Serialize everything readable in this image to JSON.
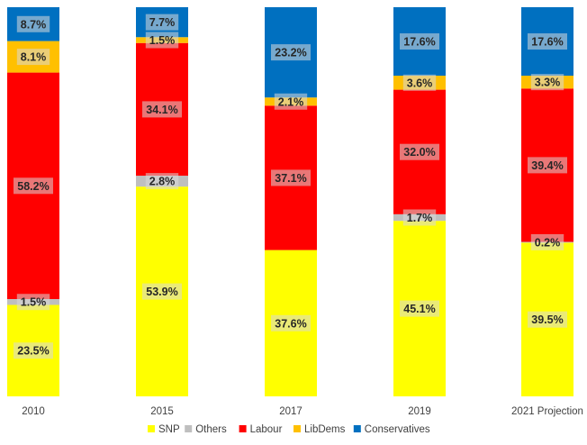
{
  "chart_data": {
    "type": "bar",
    "stacked": true,
    "percent_stacked": true,
    "categories": [
      "2010",
      "2015",
      "2017",
      "2019",
      "2021 Projection"
    ],
    "series": [
      {
        "name": "SNP",
        "color": "#ffff00",
        "values": [
          23.5,
          53.9,
          37.6,
          45.1,
          39.5
        ]
      },
      {
        "name": "Others",
        "color": "#bfbfbf",
        "values": [
          1.5,
          2.8,
          null,
          1.7,
          0.2
        ]
      },
      {
        "name": "Labour",
        "color": "#ff0000",
        "values": [
          58.2,
          34.1,
          37.1,
          32.0,
          39.4
        ]
      },
      {
        "name": "LibDems",
        "color": "#ffc000",
        "values": [
          8.1,
          1.5,
          2.1,
          3.6,
          3.3
        ]
      },
      {
        "name": "Conservatives",
        "color": "#0070c0",
        "values": [
          8.7,
          7.7,
          23.2,
          17.6,
          17.6
        ]
      }
    ],
    "labels": [
      [
        "23.5%",
        "1.5%",
        "58.2%",
        "8.1%",
        "8.7%"
      ],
      [
        "53.9%",
        "2.8%",
        "34.1%",
        "1.5%",
        "7.7%"
      ],
      [
        "37.6%",
        "",
        "37.1%",
        "2.1%",
        "23.2%"
      ],
      [
        "45.1%",
        "1.7%",
        "32.0%",
        "3.6%",
        "17.6%"
      ],
      [
        "39.5%",
        "0.2%",
        "39.4%",
        "3.3%",
        "17.6%"
      ]
    ],
    "title": "",
    "xlabel": "",
    "ylabel": "",
    "ylim": [
      0,
      100
    ],
    "grid": false,
    "legend_position": "bottom"
  }
}
